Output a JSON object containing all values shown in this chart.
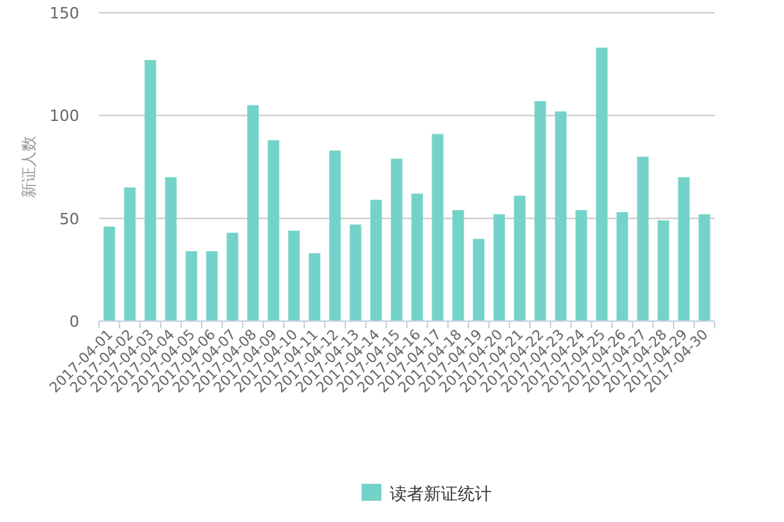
{
  "chart_data": {
    "type": "bar",
    "ylabel": "新证人数",
    "categories": [
      "2017-04-01",
      "2017-04-02",
      "2017-04-03",
      "2017-04-04",
      "2017-04-05",
      "2017-04-06",
      "2017-04-07",
      "2017-04-08",
      "2017-04-09",
      "2017-04-10",
      "2017-04-11",
      "2017-04-12",
      "2017-04-13",
      "2017-04-14",
      "2017-04-15",
      "2017-04-16",
      "2017-04-17",
      "2017-04-18",
      "2017-04-19",
      "2017-04-20",
      "2017-04-21",
      "2017-04-22",
      "2017-04-23",
      "2017-04-24",
      "2017-04-25",
      "2017-04-26",
      "2017-04-27",
      "2017-04-28",
      "2017-04-29",
      "2017-04-30"
    ],
    "series": [
      {
        "name": "读者新证统计",
        "color": "#74d3c9",
        "values": [
          46,
          65,
          127,
          70,
          34,
          34,
          43,
          105,
          88,
          44,
          33,
          83,
          47,
          59,
          79,
          62,
          91,
          54,
          40,
          52,
          61,
          107,
          102,
          54,
          133,
          53,
          80,
          49,
          70,
          52
        ]
      }
    ],
    "ylim": [
      0,
      150
    ],
    "yticks": [
      0,
      50,
      100,
      150
    ],
    "grid": "y",
    "legend": "bottom"
  }
}
